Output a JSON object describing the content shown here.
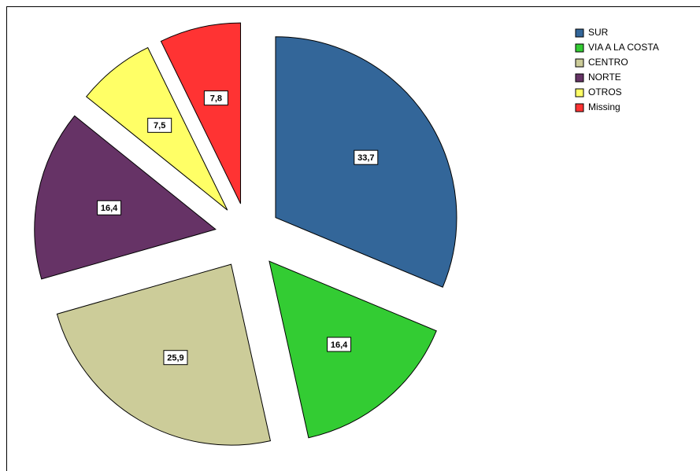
{
  "chart_data": {
    "type": "pie",
    "categories": [
      "SUR",
      "VIA A LA COSTA",
      "CENTRO",
      "NORTE",
      "OTROS",
      "Missing"
    ],
    "values": [
      33.7,
      16.4,
      25.9,
      16.4,
      7.5,
      7.8
    ],
    "value_labels": [
      "33,7",
      "16,4",
      "25,9",
      "16,4",
      "7,5",
      "7,8"
    ],
    "colors": [
      "#336699",
      "#33cc33",
      "#cccc99",
      "#663366",
      "#ffff66",
      "#ff3333"
    ],
    "legend": "top-right",
    "exploded": true
  }
}
